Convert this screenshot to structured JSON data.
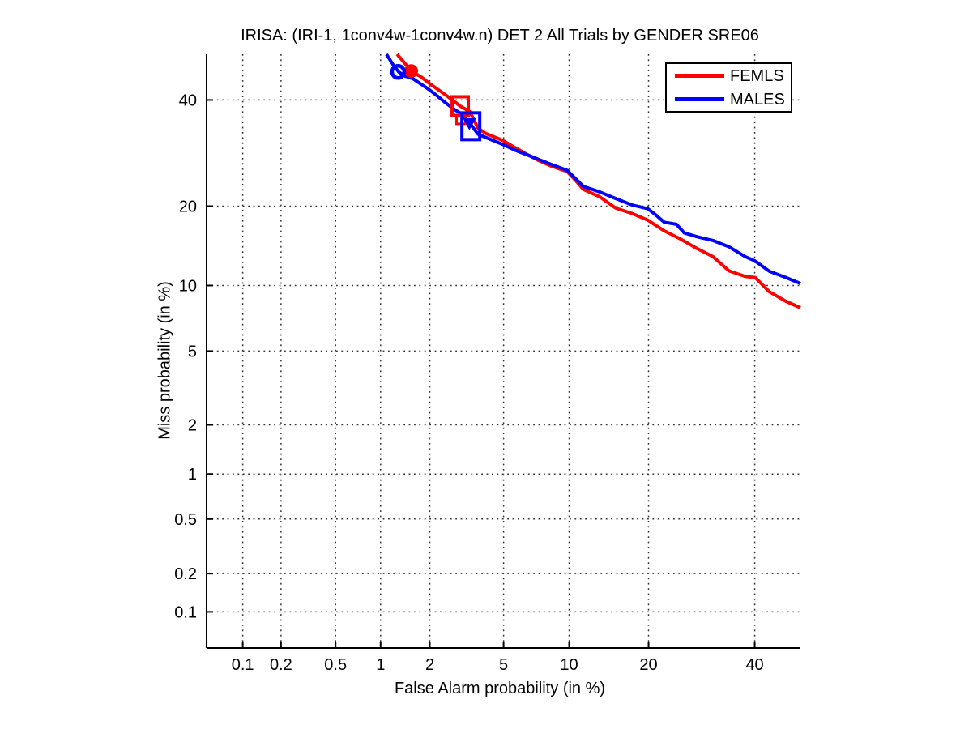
{
  "chart_data": {
    "type": "line",
    "subtype": "DET-curve",
    "title": "IRISA: (IRI-1, 1conv4w-1conv4w.n) DET 2 All Trials by GENDER SRE06",
    "xlabel": "False Alarm probability (in %)",
    "ylabel": "Miss probability (in %)",
    "scale": "normal-deviate-probit",
    "xlim": [
      0.05,
      50
    ],
    "ylim": [
      0.05,
      50
    ],
    "grid": "dotted",
    "grid_color": "#333333",
    "axis_color": "#000000",
    "legend_position": "top-right",
    "x_ticks": {
      "values": [
        0.1,
        0.2,
        0.5,
        1,
        2,
        5,
        10,
        20,
        40
      ],
      "labels": [
        "0.1",
        "0.2",
        "0.5",
        "1",
        "2",
        "5",
        "10",
        "20",
        "40"
      ]
    },
    "y_ticks": {
      "values": [
        40,
        20,
        10,
        5,
        2,
        1,
        0.5,
        0.2,
        0.1
      ],
      "labels": [
        "40",
        "20",
        "10",
        "5",
        "2",
        "1",
        "0.5",
        "0.2",
        "0.1"
      ]
    },
    "series": [
      {
        "name": "FEMLS",
        "color": "#ff0000",
        "points": [
          [
            1.27,
            50.0
          ],
          [
            1.42,
            48.0
          ],
          [
            1.55,
            46.3
          ],
          [
            1.78,
            45.0
          ],
          [
            1.99,
            43.6
          ],
          [
            2.22,
            42.3
          ],
          [
            2.46,
            41.1
          ],
          [
            2.71,
            39.9
          ],
          [
            2.97,
            38.7
          ],
          [
            3.19,
            38.0
          ],
          [
            3.35,
            37.5
          ],
          [
            3.52,
            35.8
          ],
          [
            3.7,
            34.1
          ],
          [
            4.08,
            33.0
          ],
          [
            4.93,
            31.7
          ],
          [
            5.65,
            30.3
          ],
          [
            6.46,
            29.0
          ],
          [
            7.35,
            27.8
          ],
          [
            8.34,
            26.8
          ],
          [
            9.8,
            25.8
          ],
          [
            10.6,
            24.3
          ],
          [
            11.45,
            22.7
          ],
          [
            13.28,
            21.5
          ],
          [
            15.3,
            19.7
          ],
          [
            17.5,
            18.9
          ],
          [
            19.9,
            17.9
          ],
          [
            22.5,
            16.4
          ],
          [
            25.3,
            15.3
          ],
          [
            28.3,
            14.1
          ],
          [
            31.4,
            13.1
          ],
          [
            34.6,
            11.5
          ],
          [
            38.0,
            10.9
          ],
          [
            40.1,
            10.8
          ],
          [
            43.2,
            9.4
          ],
          [
            46.8,
            8.55
          ],
          [
            50.0,
            8.0
          ]
        ]
      },
      {
        "name": "MALES",
        "color": "#0000ff",
        "points": [
          [
            1.09,
            50.0
          ],
          [
            1.2,
            47.7
          ],
          [
            1.3,
            46.1
          ],
          [
            1.42,
            45.2
          ],
          [
            1.59,
            44.6
          ],
          [
            1.78,
            43.4
          ],
          [
            1.99,
            42.2
          ],
          [
            2.22,
            40.8
          ],
          [
            2.46,
            39.4
          ],
          [
            2.71,
            38.2
          ],
          [
            3.03,
            37.0
          ],
          [
            3.35,
            35.1
          ],
          [
            3.7,
            32.9
          ],
          [
            4.08,
            32.2
          ],
          [
            4.93,
            30.9
          ],
          [
            5.65,
            29.8
          ],
          [
            6.46,
            28.9
          ],
          [
            7.35,
            28.0
          ],
          [
            8.34,
            27.1
          ],
          [
            9.8,
            26.0
          ],
          [
            11.45,
            23.2
          ],
          [
            13.28,
            22.3
          ],
          [
            15.3,
            21.2
          ],
          [
            17.5,
            20.2
          ],
          [
            19.9,
            19.6
          ],
          [
            21.1,
            18.7
          ],
          [
            22.5,
            17.6
          ],
          [
            24.6,
            17.3
          ],
          [
            26.0,
            16.1
          ],
          [
            28.3,
            15.6
          ],
          [
            31.4,
            15.1
          ],
          [
            34.6,
            14.3
          ],
          [
            38.0,
            13.1
          ],
          [
            40.1,
            12.6
          ],
          [
            43.2,
            11.45
          ],
          [
            46.8,
            10.8
          ],
          [
            50.0,
            10.2
          ]
        ]
      }
    ],
    "markers": [
      {
        "series": "FEMLS",
        "shape": "circle-filled",
        "fa": 1.55,
        "miss": 46.3,
        "r": 8.5
      },
      {
        "series": "FEMLS",
        "shape": "square-open",
        "fa": 2.97,
        "miss": 38.7,
        "w": 20,
        "h": 23
      },
      {
        "series": "FEMLS",
        "shape": "square-open-small",
        "fa": 3.0,
        "miss": 35.9,
        "w": 11,
        "h": 11
      },
      {
        "series": "MALES",
        "shape": "circle-open",
        "fa": 1.29,
        "miss": 46.1,
        "r": 7.5
      },
      {
        "series": "MALES",
        "shape": "square-open",
        "fa": 3.39,
        "miss": 34.5,
        "w": 22,
        "h": 33
      },
      {
        "series": "MALES",
        "shape": "triangle-down-filled",
        "fa": 3.33,
        "miss": 34.9,
        "w": 16,
        "h": 15
      }
    ]
  }
}
